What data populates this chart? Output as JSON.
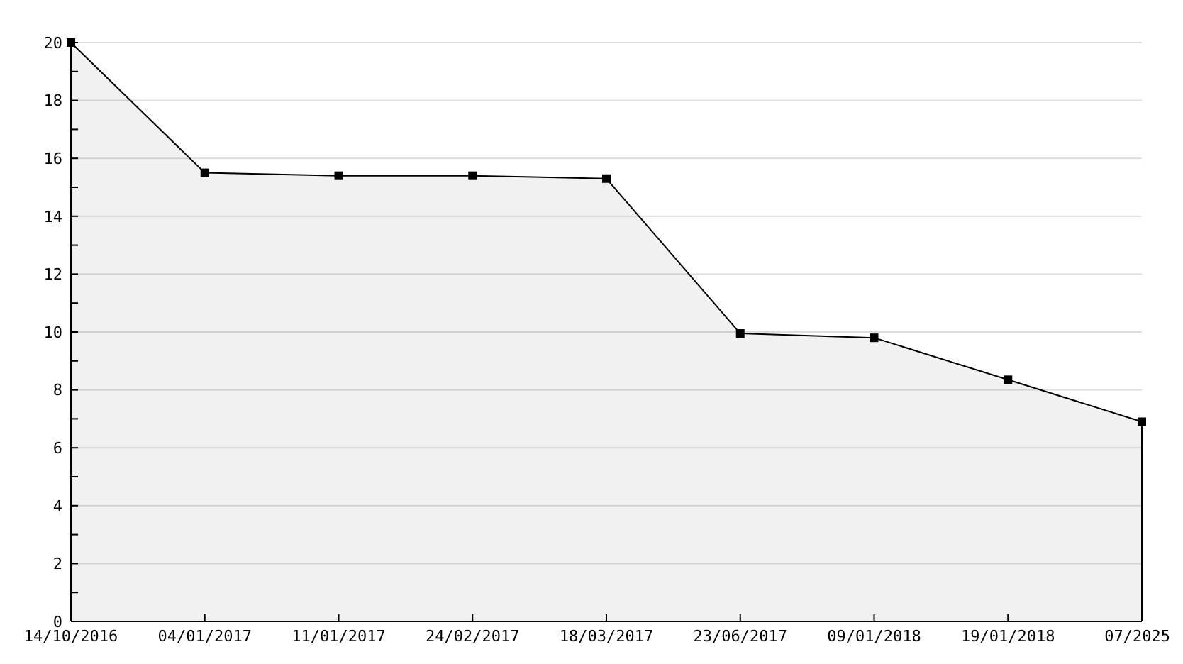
{
  "chart_data": {
    "type": "area",
    "categories": [
      "14/10/2016",
      "04/01/2017",
      "11/01/2017",
      "24/02/2017",
      "18/03/2017",
      "23/06/2017",
      "09/01/2018",
      "19/01/2018",
      "07/2025"
    ],
    "series": [
      {
        "color": "#000000",
        "values": [
          20,
          15.5,
          15.4,
          15.4,
          15.3,
          9.95,
          9.8,
          8.35,
          6.9
        ]
      }
    ],
    "ylim": [
      0,
      20
    ],
    "yticks": [
      0,
      {
        "value": 1,
        "label": null
      },
      2,
      {
        "value": 3,
        "label": null
      },
      4,
      {
        "value": 5,
        "label": null
      },
      6,
      {
        "value": 7,
        "label": null
      },
      8,
      {
        "value": 9,
        "label": null
      },
      10,
      {
        "value": 11,
        "label": null
      },
      12,
      {
        "value": 13,
        "label": null
      },
      14,
      {
        "value": 15,
        "label": null
      },
      16,
      {
        "value": 17,
        "label": null
      },
      18,
      {
        "value": 19,
        "label": null
      },
      20
    ],
    "grid": "y",
    "marker": "square",
    "line_style": "solid"
  }
}
